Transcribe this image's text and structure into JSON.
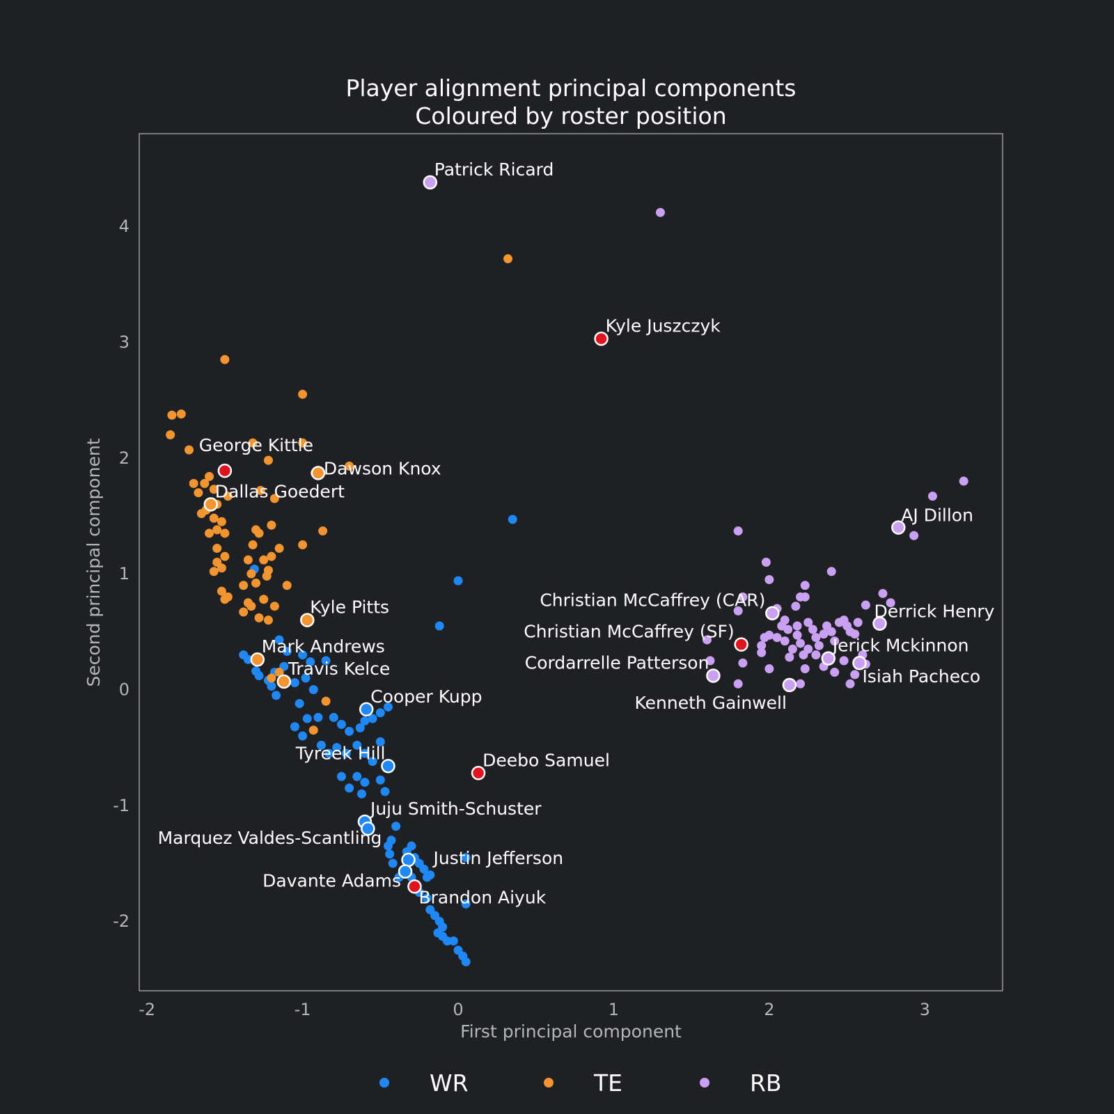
{
  "chart_data": {
    "type": "scatter",
    "title": [
      "Player alignment principal components",
      "Coloured by roster position"
    ],
    "xlabel": "First principal component",
    "ylabel": "Second principal component",
    "xlim": [
      -2.05,
      3.5
    ],
    "ylim": [
      -2.6,
      4.8
    ],
    "xticks": [
      -2,
      -1,
      0,
      1,
      2,
      3
    ],
    "yticks": [
      -2,
      -1,
      0,
      1,
      2,
      3,
      4
    ],
    "tick_labels_x": [
      "-2",
      "-1",
      "0",
      "1",
      "2",
      "3"
    ],
    "tick_labels_y": [
      "-2",
      "-1",
      "0",
      "1",
      "2",
      "3",
      "4"
    ],
    "grid": false,
    "legend_position": "bottom-center",
    "highlight_color": "#e0141e",
    "series": [
      {
        "name": "WR",
        "color": "#1f88f5",
        "points": [
          [
            0.35,
            1.47
          ],
          [
            0.0,
            0.94
          ],
          [
            -0.12,
            0.55
          ],
          [
            -1.31,
            1.04
          ],
          [
            -1.38,
            0.3
          ],
          [
            -1.35,
            0.26
          ],
          [
            -1.3,
            0.16
          ],
          [
            -1.28,
            0.12
          ],
          [
            -1.22,
            0.08
          ],
          [
            -1.15,
            0.43
          ],
          [
            -1.12,
            0.2
          ],
          [
            -1.1,
            0.33
          ],
          [
            -1.18,
            0.15
          ],
          [
            -1.2,
            0.03
          ],
          [
            -1.17,
            -0.05
          ],
          [
            -1.05,
            0.06
          ],
          [
            -1.0,
            0.3
          ],
          [
            -0.95,
            0.24
          ],
          [
            -0.98,
            0.1
          ],
          [
            -0.93,
            0.0
          ],
          [
            -0.85,
            0.25
          ],
          [
            -1.02,
            -0.12
          ],
          [
            -1.05,
            -0.32
          ],
          [
            -0.97,
            -0.25
          ],
          [
            -0.9,
            -0.24
          ],
          [
            -0.8,
            -0.24
          ],
          [
            -0.75,
            -0.3
          ],
          [
            -0.7,
            -0.36
          ],
          [
            -0.63,
            -0.33
          ],
          [
            -0.6,
            -0.27
          ],
          [
            -0.55,
            -0.25
          ],
          [
            -0.5,
            -0.2
          ],
          [
            -0.45,
            -0.15
          ],
          [
            -1.0,
            -0.4
          ],
          [
            -0.88,
            -0.48
          ],
          [
            -0.83,
            -0.55
          ],
          [
            -0.78,
            -0.5
          ],
          [
            -0.72,
            -0.55
          ],
          [
            -0.65,
            -0.48
          ],
          [
            -0.6,
            -0.55
          ],
          [
            -0.5,
            -0.45
          ],
          [
            -0.55,
            -0.62
          ],
          [
            -0.75,
            -0.75
          ],
          [
            -0.65,
            -0.75
          ],
          [
            -0.6,
            -0.8
          ],
          [
            -0.7,
            -0.85
          ],
          [
            -0.62,
            -0.9
          ],
          [
            -0.5,
            -0.78
          ],
          [
            -0.47,
            -0.88
          ],
          [
            -0.4,
            -1.18
          ],
          [
            -0.43,
            -1.3
          ],
          [
            -0.45,
            -1.35
          ],
          [
            -0.44,
            -1.42
          ],
          [
            -0.42,
            -1.5
          ],
          [
            -0.35,
            -1.55
          ],
          [
            -0.38,
            -1.62
          ],
          [
            -0.33,
            -1.4
          ],
          [
            -0.3,
            -1.35
          ],
          [
            -0.28,
            -1.45
          ],
          [
            -0.25,
            -1.5
          ],
          [
            -0.22,
            -1.55
          ],
          [
            -0.3,
            -1.62
          ],
          [
            -0.27,
            -1.68
          ],
          [
            -0.2,
            -1.62
          ],
          [
            -0.18,
            -1.6
          ],
          [
            -0.25,
            -1.75
          ],
          [
            -0.2,
            -1.8
          ],
          [
            -0.18,
            -1.9
          ],
          [
            -0.15,
            -1.95
          ],
          [
            -0.12,
            -2.0
          ],
          [
            -0.1,
            -2.05
          ],
          [
            -0.13,
            -2.1
          ],
          [
            -0.1,
            -2.13
          ],
          [
            -0.07,
            -2.17
          ],
          [
            -0.03,
            -2.17
          ],
          [
            0.0,
            -2.25
          ],
          [
            0.03,
            -2.3
          ],
          [
            0.05,
            -2.35
          ],
          [
            0.05,
            -1.45
          ],
          [
            0.05,
            -1.85
          ],
          [
            -0.6,
            -1.2
          ]
        ]
      },
      {
        "name": "TE",
        "color": "#f29430",
        "points": [
          [
            0.32,
            3.72
          ],
          [
            -1.5,
            2.85
          ],
          [
            -1.78,
            2.38
          ],
          [
            -1.84,
            2.37
          ],
          [
            -1.85,
            2.2
          ],
          [
            -1.73,
            2.07
          ],
          [
            -1.0,
            2.55
          ],
          [
            -1.32,
            2.13
          ],
          [
            -1.0,
            2.13
          ],
          [
            -1.22,
            1.98
          ],
          [
            -0.7,
            1.93
          ],
          [
            -1.6,
            1.84
          ],
          [
            -1.63,
            1.78
          ],
          [
            -1.7,
            1.78
          ],
          [
            -1.67,
            1.7
          ],
          [
            -1.57,
            1.73
          ],
          [
            -1.48,
            1.67
          ],
          [
            -1.55,
            1.6
          ],
          [
            -1.62,
            1.55
          ],
          [
            -1.57,
            1.48
          ],
          [
            -1.65,
            1.52
          ],
          [
            -1.52,
            1.45
          ],
          [
            -1.55,
            1.38
          ],
          [
            -1.5,
            1.35
          ],
          [
            -1.6,
            1.35
          ],
          [
            -1.3,
            1.38
          ],
          [
            -1.28,
            1.35
          ],
          [
            -1.32,
            1.25
          ],
          [
            -1.2,
            1.42
          ],
          [
            -1.18,
            1.65
          ],
          [
            -1.27,
            1.72
          ],
          [
            -0.92,
            1.87
          ],
          [
            -0.87,
            1.37
          ],
          [
            -1.0,
            1.25
          ],
          [
            -1.15,
            1.22
          ],
          [
            -1.55,
            1.22
          ],
          [
            -1.5,
            1.15
          ],
          [
            -1.55,
            1.1
          ],
          [
            -1.52,
            1.05
          ],
          [
            -1.57,
            1.02
          ],
          [
            -1.35,
            1.12
          ],
          [
            -1.25,
            1.12
          ],
          [
            -1.2,
            1.15
          ],
          [
            -1.23,
            0.98
          ],
          [
            -1.22,
            1.03
          ],
          [
            -1.33,
            1.0
          ],
          [
            -1.38,
            0.9
          ],
          [
            -1.3,
            0.92
          ],
          [
            -1.1,
            0.9
          ],
          [
            -1.52,
            0.85
          ],
          [
            -1.48,
            0.8
          ],
          [
            -1.5,
            0.78
          ],
          [
            -1.35,
            0.75
          ],
          [
            -1.33,
            0.72
          ],
          [
            -1.25,
            0.78
          ],
          [
            -1.18,
            0.72
          ],
          [
            -1.38,
            0.67
          ],
          [
            -1.28,
            0.62
          ],
          [
            -1.22,
            0.6
          ],
          [
            -0.85,
            -0.1
          ],
          [
            -0.93,
            -0.35
          ],
          [
            -1.2,
            0.1
          ],
          [
            -1.15,
            0.15
          ]
        ]
      },
      {
        "name": "RB",
        "color": "#caa0f2",
        "points": [
          [
            1.3,
            4.12
          ],
          [
            3.25,
            1.8
          ],
          [
            3.05,
            1.67
          ],
          [
            2.93,
            1.33
          ],
          [
            1.8,
            1.37
          ],
          [
            1.98,
            1.1
          ],
          [
            2.0,
            0.95
          ],
          [
            2.23,
            0.9
          ],
          [
            2.4,
            1.02
          ],
          [
            2.73,
            0.83
          ],
          [
            2.2,
            0.8
          ],
          [
            2.23,
            0.8
          ],
          [
            2.62,
            0.73
          ],
          [
            2.78,
            0.75
          ],
          [
            1.8,
            0.68
          ],
          [
            1.83,
            0.8
          ],
          [
            2.05,
            0.7
          ],
          [
            2.17,
            0.72
          ],
          [
            1.6,
            0.43
          ],
          [
            1.62,
            0.25
          ],
          [
            1.8,
            0.05
          ],
          [
            1.83,
            0.23
          ],
          [
            1.95,
            0.38
          ],
          [
            1.95,
            0.32
          ],
          [
            1.97,
            0.45
          ],
          [
            2.0,
            0.47
          ],
          [
            2.05,
            0.45
          ],
          [
            2.08,
            0.55
          ],
          [
            2.1,
            0.42
          ],
          [
            2.12,
            0.52
          ],
          [
            2.15,
            0.35
          ],
          [
            2.18,
            0.47
          ],
          [
            2.2,
            0.4
          ],
          [
            2.22,
            0.3
          ],
          [
            2.25,
            0.35
          ],
          [
            2.28,
            0.52
          ],
          [
            2.3,
            0.45
          ],
          [
            2.32,
            0.38
          ],
          [
            2.35,
            0.48
          ],
          [
            2.37,
            0.55
          ],
          [
            2.4,
            0.5
          ],
          [
            2.42,
            0.42
          ],
          [
            2.45,
            0.58
          ],
          [
            2.48,
            0.6
          ],
          [
            2.5,
            0.55
          ],
          [
            2.52,
            0.5
          ],
          [
            2.55,
            0.48
          ],
          [
            2.57,
            0.58
          ],
          [
            2.0,
            0.18
          ],
          [
            2.1,
            0.6
          ],
          [
            2.13,
            0.28
          ],
          [
            2.2,
            0.05
          ],
          [
            2.23,
            0.18
          ],
          [
            2.3,
            0.3
          ],
          [
            2.35,
            0.2
          ],
          [
            2.42,
            0.15
          ],
          [
            2.48,
            0.25
          ],
          [
            2.52,
            0.05
          ],
          [
            2.55,
            0.13
          ],
          [
            2.6,
            0.3
          ],
          [
            2.62,
            0.22
          ],
          [
            2.18,
            0.55
          ],
          [
            2.25,
            0.58
          ]
        ]
      }
    ],
    "labeled_players": [
      {
        "name": "Patrick Ricard",
        "x": -0.18,
        "y": 4.38,
        "position": "RB",
        "highlight": false,
        "label_anchor": "start",
        "dx": 6,
        "dy": -10
      },
      {
        "name": "Kyle Juszczyk",
        "x": 0.92,
        "y": 3.03,
        "position": "RB",
        "highlight": true,
        "label_anchor": "start",
        "dx": 6,
        "dy": -10
      },
      {
        "name": "George Kittle",
        "x": -1.5,
        "y": 1.89,
        "position": "TE",
        "highlight": true,
        "label_anchor": "middle",
        "dx": 45,
        "dy": -28
      },
      {
        "name": "Dawson Knox",
        "x": -0.9,
        "y": 1.87,
        "position": "TE",
        "highlight": false,
        "label_anchor": "start",
        "dx": 8,
        "dy": 2
      },
      {
        "name": "Dallas Goedert",
        "x": -1.59,
        "y": 1.6,
        "position": "TE",
        "highlight": false,
        "label_anchor": "start",
        "dx": 6,
        "dy": -10
      },
      {
        "name": "Kyle Pitts",
        "x": -0.97,
        "y": 0.6,
        "position": "TE",
        "highlight": false,
        "label_anchor": "start",
        "dx": 4,
        "dy": -10
      },
      {
        "name": "Mark Andrews",
        "x": -1.29,
        "y": 0.26,
        "position": "TE",
        "highlight": false,
        "label_anchor": "start",
        "dx": 6,
        "dy": -10
      },
      {
        "name": "Travis Kelce",
        "x": -1.12,
        "y": 0.07,
        "position": "TE",
        "highlight": false,
        "label_anchor": "start",
        "dx": 6,
        "dy": -10
      },
      {
        "name": "Cooper Kupp",
        "x": -0.59,
        "y": -0.17,
        "position": "WR",
        "highlight": false,
        "label_anchor": "start",
        "dx": 6,
        "dy": -10
      },
      {
        "name": "Tyreek Hill",
        "x": -0.45,
        "y": -0.66,
        "position": "WR",
        "highlight": false,
        "label_anchor": "end",
        "dx": -4,
        "dy": -10
      },
      {
        "name": "Deebo Samuel",
        "x": 0.13,
        "y": -0.72,
        "position": "WR",
        "highlight": true,
        "label_anchor": "start",
        "dx": 6,
        "dy": -10
      },
      {
        "name": "Juju Smith-Schuster",
        "x": -0.6,
        "y": -1.14,
        "position": "WR",
        "highlight": false,
        "label_anchor": "start",
        "dx": 8,
        "dy": -10
      },
      {
        "name": "Marquez Valdes-Scantling",
        "x": -0.58,
        "y": -1.2,
        "position": "WR",
        "highlight": false,
        "label_anchor": "end",
        "dx": 20,
        "dy": 22
      },
      {
        "name": "Justin Jefferson",
        "x": -0.32,
        "y": -1.47,
        "position": "WR",
        "highlight": false,
        "label_anchor": "start",
        "dx": 36,
        "dy": 6
      },
      {
        "name": "Davante Adams",
        "x": -0.34,
        "y": -1.57,
        "position": "WR",
        "highlight": false,
        "label_anchor": "end",
        "dx": -6,
        "dy": 22
      },
      {
        "name": "Brandon Aiyuk",
        "x": -0.28,
        "y": -1.7,
        "position": "WR",
        "highlight": true,
        "label_anchor": "start",
        "dx": 6,
        "dy": 24
      },
      {
        "name": "AJ Dillon",
        "x": 2.83,
        "y": 1.4,
        "position": "RB",
        "highlight": false,
        "label_anchor": "start",
        "dx": 4,
        "dy": -9
      },
      {
        "name": "Christian McCaffrey (CAR)",
        "x": 2.02,
        "y": 0.66,
        "position": "RB",
        "highlight": false,
        "label_anchor": "end",
        "dx": -10,
        "dy": -10
      },
      {
        "name": "Derrick Henry",
        "x": 2.71,
        "y": 0.57,
        "position": "RB",
        "highlight": false,
        "label_anchor": "start",
        "dx": -8,
        "dy": -9
      },
      {
        "name": "Christian McCaffrey (SF)",
        "x": 1.82,
        "y": 0.39,
        "position": "RB",
        "highlight": true,
        "label_anchor": "end",
        "dx": -10,
        "dy": -10
      },
      {
        "name": "Jerick Mckinnon",
        "x": 2.38,
        "y": 0.27,
        "position": "RB",
        "highlight": false,
        "label_anchor": "start",
        "dx": 6,
        "dy": -10
      },
      {
        "name": "Cordarrelle Patterson",
        "x": 1.64,
        "y": 0.12,
        "position": "RB",
        "highlight": false,
        "label_anchor": "end",
        "dx": -6,
        "dy": -10
      },
      {
        "name": "Isiah Pacheco",
        "x": 2.58,
        "y": 0.23,
        "position": "RB",
        "highlight": false,
        "label_anchor": "start",
        "dx": 4,
        "dy": 28
      },
      {
        "name": "Kenneth Gainwell",
        "x": 2.13,
        "y": 0.04,
        "position": "RB",
        "highlight": false,
        "label_anchor": "end",
        "dx": -4,
        "dy": 34
      }
    ]
  }
}
